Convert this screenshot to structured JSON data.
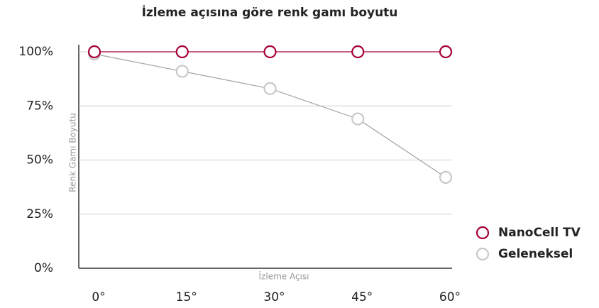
{
  "chart_data": {
    "type": "line",
    "title": "İzleme açısına göre renk gamı boyutu",
    "x_label": "İzleme Açısı",
    "y_label": "Renk Gamı Boyutu",
    "categories": [
      "0°",
      "15°",
      "30°",
      "45°",
      "60°"
    ],
    "series": [
      {
        "name": "NanoCell TV",
        "color": "#a50034",
        "values": [
          100,
          100,
          100,
          100,
          100
        ]
      },
      {
        "name": "Geleneksel",
        "color": "#c8c8c8",
        "values": [
          99,
          91,
          83,
          69,
          42
        ]
      }
    ],
    "ylim": [
      0,
      100
    ],
    "yticks": [
      {
        "value": 0,
        "label": "0%"
      },
      {
        "value": 25,
        "label": "25%"
      },
      {
        "value": 50,
        "label": "50%"
      },
      {
        "value": 75,
        "label": "75%"
      },
      {
        "value": 100,
        "label": "100%"
      }
    ],
    "grid": true,
    "legend": "right"
  }
}
